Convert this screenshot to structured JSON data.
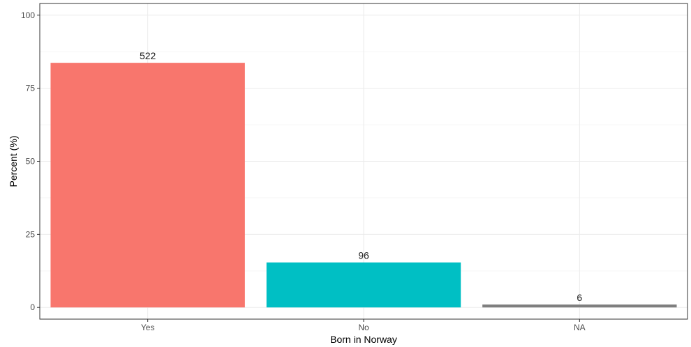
{
  "chart_data": {
    "type": "bar",
    "categories": [
      "Yes",
      "No",
      "NA"
    ],
    "values": [
      83.7,
      15.4,
      1.0
    ],
    "data_labels": [
      "522",
      "96",
      "6"
    ],
    "bar_colors": [
      "#F8766D",
      "#00BFC4",
      "#7F7F7F"
    ],
    "xlabel": "Born in Norway",
    "ylabel": "Percent (%)",
    "ylim": [
      -4,
      104
    ],
    "yticks": [
      0,
      25,
      50,
      75,
      100
    ],
    "ytick_labels": [
      "0",
      "25",
      "50",
      "75",
      "100"
    ],
    "grid": true,
    "legend": "none",
    "colors": {
      "panel_border": "#333333",
      "grid_major": "#ebebeb",
      "grid_minor": "#f5f5f5",
      "background": "#ffffff"
    }
  }
}
